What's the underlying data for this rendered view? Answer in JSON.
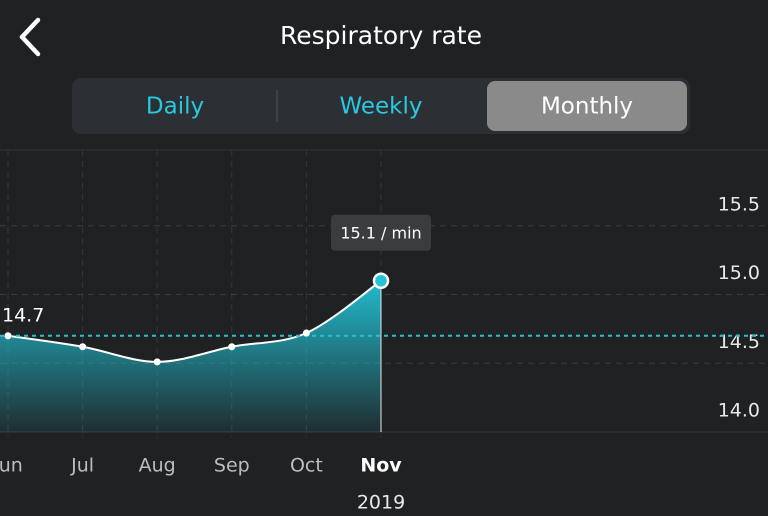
{
  "header": {
    "title": "Respiratory rate"
  },
  "tabs": [
    "Daily",
    "Weekly",
    "Monthly"
  ],
  "selected_tab": 2,
  "chart_data": {
    "type": "area",
    "categories": [
      "Jun",
      "Jul",
      "Aug",
      "Sep",
      "Oct",
      "Nov"
    ],
    "values": [
      14.7,
      14.62,
      14.51,
      14.62,
      14.72,
      15.1
    ],
    "value_labels": [
      null,
      null,
      null,
      null,
      null,
      "15.1 / min"
    ],
    "average": 14.7,
    "x_sublabel": "2019",
    "color": "#22c3d6",
    "ylim": [
      14,
      16
    ],
    "yticks": [
      {
        "value": 14,
        "label": "14.0"
      },
      14.5,
      {
        "value": 15,
        "label": "15.0"
      },
      15.5
    ],
    "grid": true
  }
}
